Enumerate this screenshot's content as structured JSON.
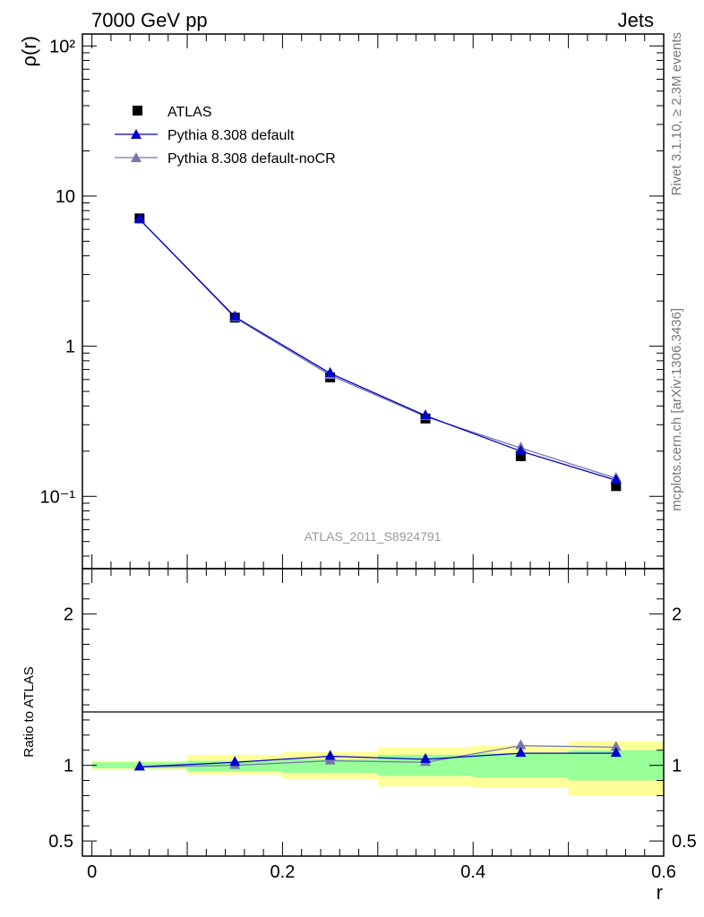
{
  "header": {
    "left": "7000 GeV pp",
    "right": "Jets"
  },
  "side_labels": {
    "rivet": "Rivet 3.1.10, ≥ 2.3M events",
    "mcplots": "mcplots.cern.ch [arXiv:1306.3436]"
  },
  "analysis_label": "ATLAS_2011_S8924791",
  "chart_data": [
    {
      "type": "line",
      "panel": "main",
      "ylabel": "ρ(r)",
      "xlabel": "",
      "yscale": "log",
      "xlim": [
        -0.01,
        0.6
      ],
      "ylim": [
        0.033,
        120
      ],
      "ytick_labels": [
        "10⁻¹",
        "1",
        "10",
        "10²"
      ],
      "legend_position": "top-left",
      "x": [
        0.05,
        0.15,
        0.25,
        0.35,
        0.45,
        0.55
      ],
      "series": [
        {
          "name": "ATLAS",
          "marker": "square",
          "color": "#000000",
          "values": [
            7.1,
            1.55,
            0.62,
            0.33,
            0.185,
            0.117
          ]
        },
        {
          "name": "Pythia 8.308 default",
          "marker": "triangle",
          "color": "#0000cc",
          "values": [
            7.0,
            1.57,
            0.66,
            0.345,
            0.2,
            0.128
          ]
        },
        {
          "name": "Pythia 8.308 default-noCR",
          "marker": "triangle",
          "color": "#7777aa",
          "values": [
            7.0,
            1.55,
            0.64,
            0.34,
            0.21,
            0.132
          ]
        }
      ]
    },
    {
      "type": "line",
      "panel": "ratio",
      "ylabel": "Ratio to ATLAS",
      "xlabel": "r",
      "xlim": [
        -0.01,
        0.6
      ],
      "ylim": [
        0.4,
        2.3
      ],
      "x_ticks": [
        0,
        0.2,
        0.4,
        0.6
      ],
      "x_tick_labels": [
        "0",
        "0.2",
        "0.4",
        "0.6"
      ],
      "y_ticks": [
        0.5,
        1,
        2
      ],
      "y_tick_labels": [
        "0.5",
        "1",
        "2"
      ],
      "bins": [
        [
          0.0,
          0.1
        ],
        [
          0.1,
          0.2
        ],
        [
          0.2,
          0.3
        ],
        [
          0.3,
          0.4
        ],
        [
          0.4,
          0.5
        ],
        [
          0.5,
          0.6
        ]
      ],
      "uncertainty_bands": {
        "yellow": {
          "color": "#ffff99",
          "low": [
            0.97,
            0.94,
            0.91,
            0.86,
            0.85,
            0.8
          ],
          "high": [
            1.03,
            1.07,
            1.09,
            1.12,
            1.13,
            1.16
          ]
        },
        "green": {
          "color": "#99ff99",
          "low": [
            0.98,
            0.96,
            0.95,
            0.93,
            0.92,
            0.9
          ],
          "high": [
            1.02,
            1.03,
            1.04,
            1.07,
            1.08,
            1.1
          ]
        }
      },
      "x": [
        0.05,
        0.15,
        0.25,
        0.35,
        0.45,
        0.55
      ],
      "series": [
        {
          "name": "Pythia 8.308 default",
          "color": "#0000cc",
          "values": [
            0.99,
            1.02,
            1.06,
            1.04,
            1.08,
            1.08
          ]
        },
        {
          "name": "Pythia 8.308 default-noCR",
          "color": "#7777aa",
          "values": [
            0.99,
            1.0,
            1.03,
            1.02,
            1.13,
            1.12
          ]
        }
      ]
    }
  ]
}
